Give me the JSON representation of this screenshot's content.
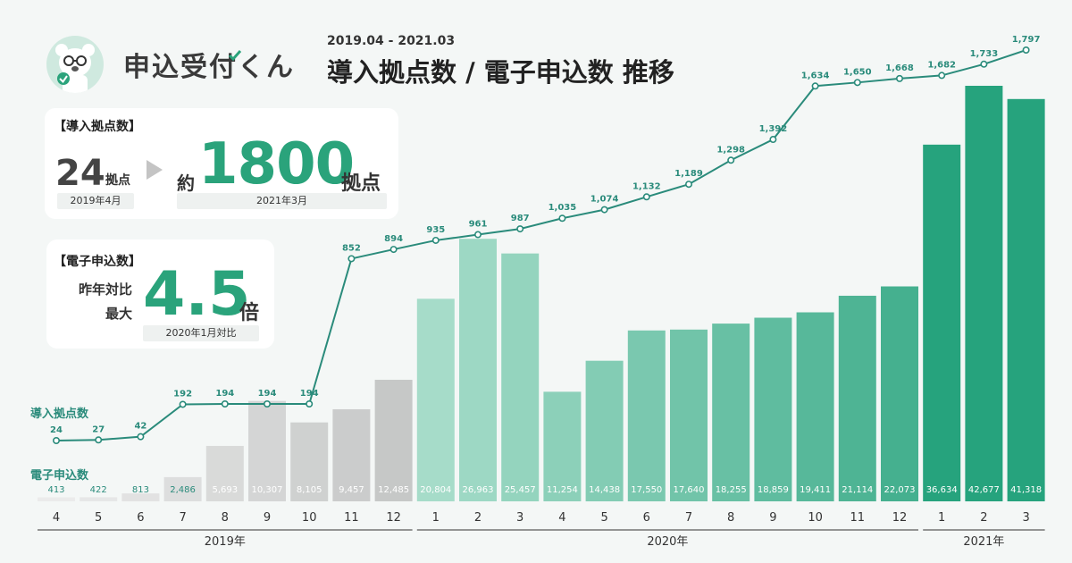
{
  "header": {
    "app_name": "申込受付くん",
    "date_range": "2019.04 - 2021.03",
    "title": "導入拠点数 / 電子申込数 推移"
  },
  "kpi_sites": {
    "tag": "【導入拠点数】",
    "start_value": "24",
    "start_unit": "拠点",
    "start_date": "2019年4月",
    "prefix": "約",
    "end_value": "1800",
    "end_unit": "拠点",
    "end_date": "2021年3月"
  },
  "kpi_apps": {
    "tag": "【電子申込数】",
    "line1": "昨年対比",
    "line2": "最大",
    "value": "4.5",
    "unit": "倍",
    "note": "2020年1月対比"
  },
  "legend": {
    "sites_label": "導入拠点数",
    "apps_label": "電子申込数"
  },
  "chart_data": {
    "type": "bar",
    "categories": [
      "4",
      "5",
      "6",
      "7",
      "8",
      "9",
      "10",
      "11",
      "12",
      "1",
      "2",
      "3",
      "4",
      "5",
      "6",
      "7",
      "8",
      "9",
      "10",
      "11",
      "12",
      "1",
      "2",
      "3"
    ],
    "year_groups": [
      {
        "label": "2019年",
        "start": 0,
        "end": 8
      },
      {
        "label": "2020年",
        "start": 9,
        "end": 20
      },
      {
        "label": "2021年",
        "start": 21,
        "end": 23
      }
    ],
    "series": [
      {
        "name": "電子申込数",
        "kind": "bar",
        "values": [
          413,
          422,
          813,
          2486,
          5693,
          10307,
          8105,
          9457,
          12485,
          20804,
          26963,
          25457,
          11254,
          14438,
          17550,
          17640,
          18255,
          18859,
          19411,
          21114,
          22073,
          36634,
          42677,
          41318
        ],
        "labels": [
          "413",
          "422",
          "813",
          "2,486",
          "5,693",
          "10,307",
          "8,105",
          "9,457",
          "12,485",
          "20,804",
          "26,963",
          "25,457",
          "11,254",
          "14,438",
          "17,550",
          "17,640",
          "18,255",
          "18,859",
          "19,411",
          "21,114",
          "22,073",
          "36,634",
          "42,677",
          "41,318"
        ]
      },
      {
        "name": "導入拠点数",
        "kind": "line",
        "values": [
          24,
          27,
          42,
          192,
          194,
          194,
          194,
          852,
          894,
          935,
          961,
          987,
          1035,
          1074,
          1132,
          1189,
          1298,
          1392,
          1634,
          1650,
          1668,
          1682,
          1733,
          1797
        ],
        "labels": [
          "24",
          "27",
          "42",
          "192",
          "194",
          "194",
          "194",
          "852",
          "894",
          "935",
          "961",
          "987",
          "1,035",
          "1,074",
          "1,132",
          "1,189",
          "1,298",
          "1,392",
          "1,634",
          "1,650",
          "1,668",
          "1,682",
          "1,733",
          "1,797"
        ]
      }
    ],
    "colors": {
      "bar_2019_start": "#ebebeb",
      "bar_2019_end": "#c6c8c7",
      "bar_2020_start": "#a6dcc9",
      "bar_2020_end": "#45b08f",
      "bar_2021": "#26a37d",
      "line": "#2a8b7b",
      "bar_label": "#ffffff",
      "axis_text": "#333333"
    }
  }
}
